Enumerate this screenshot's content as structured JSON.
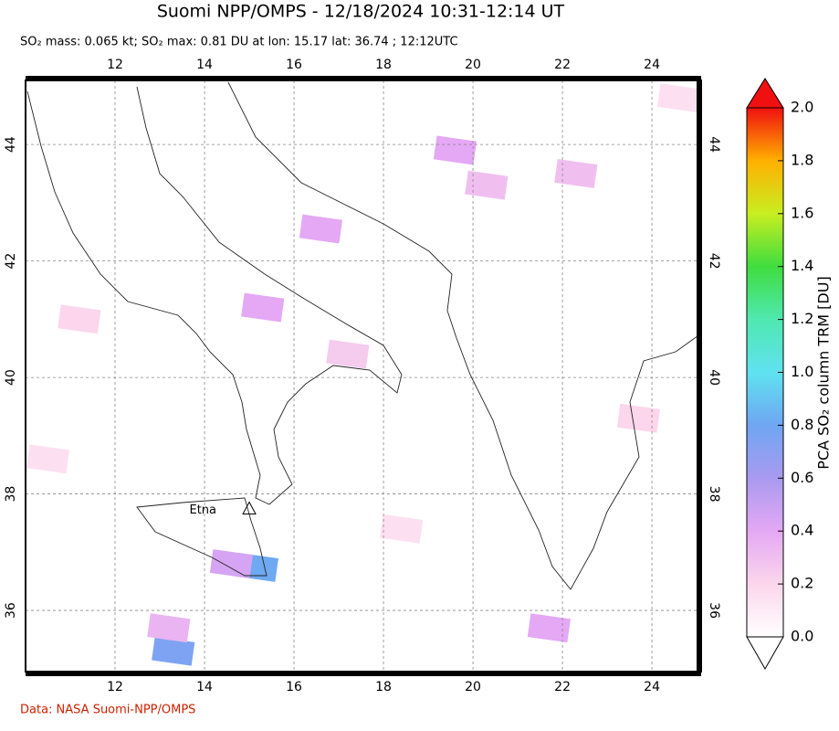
{
  "title": "Suomi NPP/OMPS - 12/18/2024 10:31-12:14 UT",
  "subtitle": "SO₂ mass: 0.065 kt; SO₂ max: 0.81 DU at lon: 15.17 lat: 36.74 ; 12:12UTC",
  "map": {
    "xlim": [
      10,
      25.1
    ],
    "ylim": [
      34.95,
      45.1
    ],
    "xticks": [
      12,
      14,
      16,
      18,
      20,
      22,
      24
    ],
    "yticks": [
      36,
      38,
      40,
      42,
      44
    ],
    "grid": true,
    "volcano": {
      "label": "Etna",
      "lon": 15.0,
      "lat": 37.75
    },
    "cells": [
      {
        "lon": 15.17,
        "lat": 36.74,
        "value": 0.81
      },
      {
        "lon": 13.3,
        "lat": 35.3,
        "value": 0.75
      },
      {
        "lon": 14.6,
        "lat": 36.8,
        "value": 0.45
      },
      {
        "lon": 19.6,
        "lat": 43.9,
        "value": 0.4
      },
      {
        "lon": 16.6,
        "lat": 42.55,
        "value": 0.4
      },
      {
        "lon": 15.3,
        "lat": 41.2,
        "value": 0.4
      },
      {
        "lon": 21.7,
        "lat": 35.7,
        "value": 0.4
      },
      {
        "lon": 13.2,
        "lat": 35.7,
        "value": 0.35
      },
      {
        "lon": 20.3,
        "lat": 43.3,
        "value": 0.3
      },
      {
        "lon": 22.3,
        "lat": 43.5,
        "value": 0.3
      },
      {
        "lon": 17.2,
        "lat": 40.4,
        "value": 0.25
      },
      {
        "lon": 23.7,
        "lat": 39.3,
        "value": 0.2
      },
      {
        "lon": 11.2,
        "lat": 41.0,
        "value": 0.2
      },
      {
        "lon": 18.4,
        "lat": 37.4,
        "value": 0.15
      },
      {
        "lon": 24.6,
        "lat": 44.8,
        "value": 0.15
      },
      {
        "lon": 10.5,
        "lat": 38.6,
        "value": 0.15
      }
    ]
  },
  "colorbar": {
    "label": "PCA SO₂ column TRM [DU]",
    "lim": [
      0,
      2
    ],
    "ticks": [
      {
        "value": 0,
        "label": "0.0"
      },
      0.2,
      0.4,
      0.6,
      0.8,
      {
        "value": 1,
        "label": "1.0"
      },
      1.2,
      1.4,
      1.6,
      1.8,
      {
        "value": 2,
        "label": "2.0"
      }
    ]
  },
  "source": "Data: NASA Suomi-NPP/OMPS"
}
